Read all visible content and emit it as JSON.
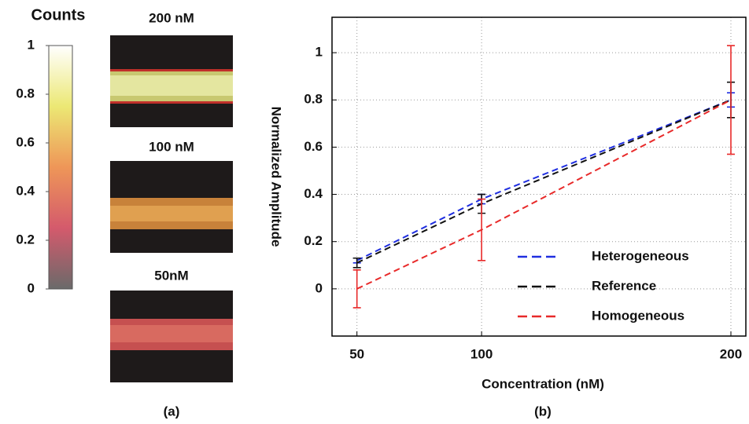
{
  "chart_data": [
    {
      "type": "colorbar",
      "title": "Counts",
      "ylim": [
        0,
        1
      ],
      "yticks": [
        0,
        0.2,
        0.4,
        0.6,
        0.8,
        1
      ],
      "colormap": [
        "#6a6a6a",
        "#d45a6c",
        "#ee9658",
        "#ece874",
        "#ffffff"
      ],
      "images": [
        {
          "label": "200 nM"
        },
        {
          "label": "100 nM"
        },
        {
          "label": "50nM"
        }
      ],
      "panel_label": "(a)"
    },
    {
      "type": "line",
      "x": [
        50,
        100,
        200
      ],
      "xlim": [
        40,
        206
      ],
      "xticks": [
        50,
        100,
        200
      ],
      "ylim": [
        -0.2,
        1.15
      ],
      "yticks": [
        0,
        0.2,
        0.4,
        0.6,
        0.8,
        1
      ],
      "xlabel": "Concentration (nM)",
      "ylabel": "Normalized Amplitude",
      "grid": true,
      "legend": "lower right",
      "panel_label": "(b)",
      "series": [
        {
          "name": "Heterogeneous",
          "color": "#1f2ee0",
          "values": [
            0.12,
            0.38,
            0.8
          ],
          "errors": [
            0.01,
            0.02,
            0.03
          ]
        },
        {
          "name": "Reference",
          "color": "#111111",
          "values": [
            0.11,
            0.36,
            0.8
          ],
          "errors": [
            0.02,
            0.04,
            0.075
          ]
        },
        {
          "name": "Homogeneous",
          "color": "#e82a2a",
          "values": [
            0,
            0.25,
            0.8
          ],
          "errors": [
            0.08,
            0.13,
            0.23
          ]
        }
      ]
    }
  ]
}
